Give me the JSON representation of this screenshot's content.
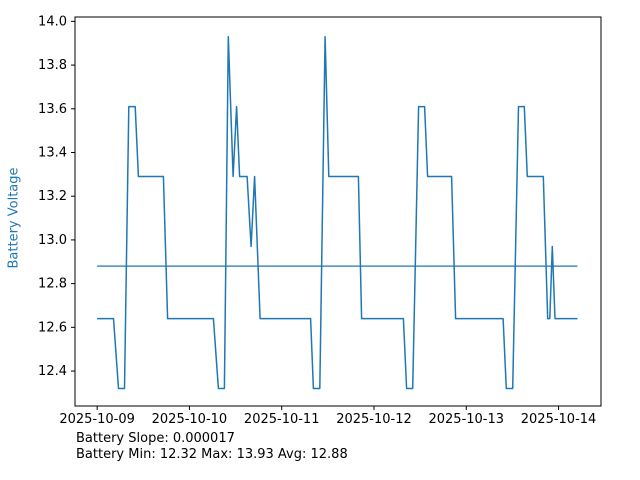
{
  "figure": {
    "footer_line1": "Battery Slope: 0.000017",
    "footer_line2": "Battery Min: 12.32 Max: 13.93 Avg: 12.88"
  },
  "stats": {
    "slope": 1.7e-05,
    "min": 12.32,
    "max": 13.93,
    "avg": 12.88
  },
  "colors": {
    "line": "#1f77b4",
    "axis": "#000000",
    "text": "#000000",
    "ylabel": "#1f77b4",
    "background": "#ffffff"
  },
  "chart_data": {
    "type": "line",
    "title": "",
    "xlabel": "",
    "ylabel": "Battery Voltage",
    "grid": false,
    "legend": "none",
    "x_unit": "days since 2025-10-09 00:00",
    "xlim": [
      -0.24,
      5.46
    ],
    "ylim": [
      12.24,
      14.02
    ],
    "y_ticks": [
      "14.0",
      "13.8",
      "13.6",
      "13.4",
      "13.2",
      "13.0",
      "12.8",
      "12.6",
      "12.4"
    ],
    "x_ticks": [
      {
        "label": "2025-10-09",
        "day": 0
      },
      {
        "label": "2025-10-10",
        "day": 1
      },
      {
        "label": "2025-10-11",
        "day": 2
      },
      {
        "label": "2025-10-12",
        "day": 3
      },
      {
        "label": "2025-10-13",
        "day": 4
      },
      {
        "label": "2025-10-14",
        "day": 5
      }
    ],
    "series": [
      {
        "name": "battery-voltage",
        "color": "#1f77b4",
        "width": 1.5,
        "points": [
          [
            0.0,
            12.64
          ],
          [
            0.177,
            12.64
          ],
          [
            0.231,
            12.32
          ],
          [
            0.296,
            12.32
          ],
          [
            0.343,
            13.61
          ],
          [
            0.412,
            13.61
          ],
          [
            0.447,
            13.29
          ],
          [
            0.718,
            13.29
          ],
          [
            0.764,
            12.64
          ],
          [
            1.26,
            12.64
          ],
          [
            1.314,
            12.32
          ],
          [
            1.379,
            12.32
          ],
          [
            1.421,
            13.93
          ],
          [
            1.473,
            13.29
          ],
          [
            1.511,
            13.61
          ],
          [
            1.544,
            13.29
          ],
          [
            1.625,
            13.29
          ],
          [
            1.668,
            12.97
          ],
          [
            1.706,
            13.29
          ],
          [
            1.766,
            12.64
          ],
          [
            2.313,
            12.64
          ],
          [
            2.343,
            12.32
          ],
          [
            2.413,
            12.32
          ],
          [
            2.47,
            13.93
          ],
          [
            2.51,
            13.29
          ],
          [
            2.831,
            13.29
          ],
          [
            2.866,
            12.64
          ],
          [
            3.319,
            12.64
          ],
          [
            3.353,
            12.32
          ],
          [
            3.42,
            12.32
          ],
          [
            3.483,
            13.61
          ],
          [
            3.548,
            13.61
          ],
          [
            3.581,
            13.29
          ],
          [
            3.841,
            13.29
          ],
          [
            3.884,
            12.64
          ],
          [
            4.399,
            12.64
          ],
          [
            4.434,
            12.32
          ],
          [
            4.503,
            12.32
          ],
          [
            4.566,
            13.61
          ],
          [
            4.629,
            13.61
          ],
          [
            4.661,
            13.29
          ],
          [
            4.835,
            13.29
          ],
          [
            4.882,
            12.64
          ],
          [
            4.905,
            12.64
          ],
          [
            4.932,
            12.97
          ],
          [
            4.962,
            12.64
          ],
          [
            5.205,
            12.64
          ]
        ]
      },
      {
        "name": "battery-average",
        "color": "#1f77b4",
        "width": 1.3,
        "points": [
          [
            0.0,
            12.88
          ],
          [
            5.205,
            12.88
          ]
        ]
      }
    ]
  }
}
